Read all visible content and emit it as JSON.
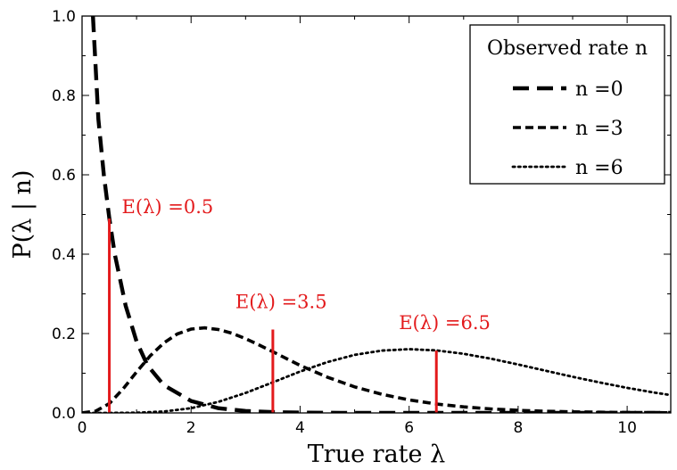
{
  "chart_data": {
    "type": "line",
    "title": "",
    "xlabel": "True rate λ",
    "ylabel": "P(λ | n)",
    "xlim": [
      0,
      10.8
    ],
    "ylim": [
      0,
      1.0
    ],
    "xticks": [
      0,
      2,
      4,
      6,
      8,
      10
    ],
    "yticks": [
      0.0,
      0.2,
      0.4,
      0.6,
      0.8,
      1.0
    ],
    "x_tick_labels": [
      "0",
      "2",
      "4",
      "6",
      "8",
      "10"
    ],
    "y_tick_labels": [
      "0.0",
      "0.2",
      "0.4",
      "0.6",
      "0.8",
      "1.0"
    ],
    "grid": false,
    "legend": {
      "title": "Observed rate n",
      "placement": "top-right"
    },
    "series": [
      {
        "name": "n =0",
        "n": 0,
        "style": "long-dashed",
        "x": [
          0.2,
          0.3,
          0.4,
          0.5,
          0.6,
          0.8,
          1.0,
          1.2,
          1.5,
          2.0,
          2.5,
          3.0,
          3.5,
          4.0,
          5.0,
          6.0,
          7.0,
          8.0,
          9.0,
          10.0,
          10.8
        ],
        "y": [
          1.0,
          0.74,
          0.6,
          0.49,
          0.4,
          0.27,
          0.18,
          0.12,
          0.07,
          0.03,
          0.012,
          0.005,
          0.002,
          0.0008,
          0.0001,
          0.0,
          0.0,
          0.0,
          0.0,
          0.0,
          0.0
        ]
      },
      {
        "name": "n =3",
        "n": 3,
        "style": "dashed",
        "x": [
          0.0,
          0.25,
          0.5,
          0.75,
          1.0,
          1.25,
          1.5,
          1.75,
          2.0,
          2.25,
          2.5,
          2.75,
          3.0,
          3.25,
          3.5,
          4.0,
          4.5,
          5.0,
          5.5,
          6.0,
          6.5,
          7.0,
          7.5,
          8.0,
          8.5,
          9.0,
          9.5,
          10.0,
          10.8
        ],
        "y": [
          0.0,
          0.0044,
          0.0235,
          0.0599,
          0.1031,
          0.1439,
          0.1765,
          0.199,
          0.2112,
          0.2143,
          0.2101,
          0.2006,
          0.1871,
          0.1711,
          0.1541,
          0.1198,
          0.09,
          0.0657,
          0.0469,
          0.0327,
          0.0225,
          0.0152,
          0.0101,
          0.0066,
          0.0043,
          0.0028,
          0.0018,
          0.0011,
          0.0005
        ]
      },
      {
        "name": "n =6",
        "n": 6,
        "style": "dotted",
        "x": [
          0.0,
          0.5,
          1.0,
          1.5,
          2.0,
          2.5,
          3.0,
          3.5,
          4.0,
          4.5,
          5.0,
          5.5,
          6.0,
          6.5,
          7.0,
          7.5,
          8.0,
          8.5,
          9.0,
          9.5,
          10.0,
          10.5,
          10.8
        ],
        "y": [
          0.0,
          2e-05,
          0.0005,
          0.0035,
          0.012,
          0.0278,
          0.0504,
          0.0771,
          0.1042,
          0.1281,
          0.1462,
          0.1571,
          0.1606,
          0.1575,
          0.149,
          0.1367,
          0.1221,
          0.1066,
          0.0911,
          0.0766,
          0.0631,
          0.0513,
          0.045
        ]
      }
    ],
    "annotations": [
      {
        "label": "E(λ) =0.5",
        "x": 0.5,
        "y": 0.49
      },
      {
        "label": "E(λ) =3.5",
        "x": 3.5,
        "y": 0.21
      },
      {
        "label": "E(λ) =6.5",
        "x": 6.5,
        "y": 0.157
      }
    ],
    "colors": {
      "curves": "#000000",
      "annotation": "#e31a1c"
    }
  }
}
